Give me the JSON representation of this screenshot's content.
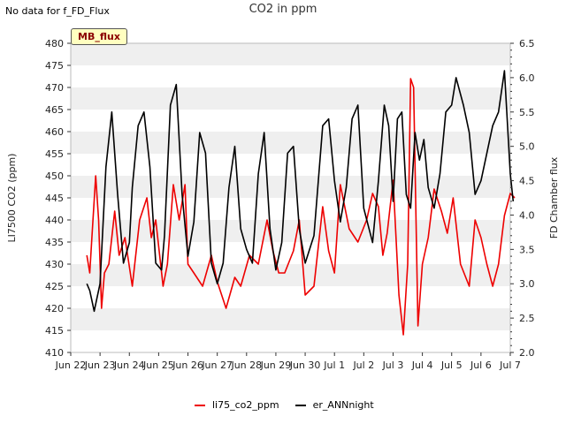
{
  "corner_note": "No data for f_FD_Flux",
  "badge": "MB_flux",
  "colors": {
    "red": "#ee0000",
    "black": "#000000",
    "band": "#efefef"
  },
  "chart_data": {
    "type": "line",
    "title": "CO2 in ppm",
    "ylabel": "LI7500 CO2 (ppm)",
    "y2label": "FD Chamber flux",
    "xlim": [
      0,
      15
    ],
    "ylim": [
      410,
      480
    ],
    "y2lim": [
      2.0,
      6.5
    ],
    "yticks": [
      410,
      415,
      420,
      425,
      430,
      435,
      440,
      445,
      450,
      455,
      460,
      465,
      470,
      475,
      480
    ],
    "y2ticks": [
      2.0,
      2.5,
      3.0,
      3.5,
      4.0,
      4.5,
      5.0,
      5.5,
      6.0,
      6.5
    ],
    "xticks": [
      {
        "x": 0,
        "label": "Jun 22"
      },
      {
        "x": 1,
        "label": "Jun 23"
      },
      {
        "x": 2,
        "label": "Jun 24"
      },
      {
        "x": 3,
        "label": "Jun 25"
      },
      {
        "x": 4,
        "label": "Jun 26"
      },
      {
        "x": 5,
        "label": "Jun 27"
      },
      {
        "x": 6,
        "label": "Jun 28"
      },
      {
        "x": 7,
        "label": "Jun 29"
      },
      {
        "x": 8,
        "label": "Jun 30"
      },
      {
        "x": 9,
        "label": "Jul 1"
      },
      {
        "x": 10,
        "label": "Jul 2"
      },
      {
        "x": 11,
        "label": "Jul 3"
      },
      {
        "x": 12,
        "label": "Jul 4"
      },
      {
        "x": 13,
        "label": "Jul 5"
      },
      {
        "x": 14,
        "label": "Jul 6"
      },
      {
        "x": 15,
        "label": "Jul 7"
      }
    ],
    "series": [
      {
        "name": "li75_co2_ppm",
        "color": "#ee0000",
        "axis": "left",
        "x": [
          0.55,
          0.65,
          0.72,
          0.85,
          0.95,
          1.05,
          1.15,
          1.3,
          1.5,
          1.65,
          1.85,
          2.1,
          2.35,
          2.6,
          2.75,
          2.9,
          3.15,
          3.3,
          3.5,
          3.7,
          3.9,
          4.0,
          4.2,
          4.5,
          4.8,
          5.0,
          5.3,
          5.6,
          5.8,
          6.1,
          6.4,
          6.7,
          6.9,
          7.1,
          7.3,
          7.6,
          7.8,
          8.0,
          8.3,
          8.6,
          8.8,
          9.0,
          9.2,
          9.5,
          9.8,
          10.1,
          10.3,
          10.5,
          10.65,
          10.8,
          11.0,
          11.2,
          11.35,
          11.5,
          11.6,
          11.7,
          11.85,
          12.0,
          12.2,
          12.4,
          12.65,
          12.85,
          13.05,
          13.3,
          13.6,
          13.8,
          14.0,
          14.2,
          14.4,
          14.6,
          14.8,
          15.0,
          15.15
        ],
        "y": [
          432,
          428,
          436,
          450,
          440,
          420,
          428,
          430,
          442,
          432,
          436,
          425,
          440,
          445,
          436,
          440,
          425,
          430,
          448,
          440,
          448,
          430,
          428,
          425,
          432,
          426,
          420,
          427,
          425,
          432,
          430,
          440,
          433,
          428,
          428,
          433,
          440,
          423,
          425,
          443,
          433,
          428,
          448,
          438,
          435,
          440,
          446,
          443,
          432,
          437,
          449,
          423,
          414,
          430,
          472,
          470,
          416,
          430,
          436,
          447,
          442,
          437,
          445,
          430,
          425,
          440,
          436,
          430,
          425,
          430,
          441,
          446,
          445
        ]
      },
      {
        "name": "er_ANNnight",
        "color": "#000000",
        "axis": "right",
        "x": [
          0.55,
          0.65,
          0.8,
          1.0,
          1.2,
          1.4,
          1.6,
          1.8,
          2.0,
          2.1,
          2.3,
          2.5,
          2.7,
          2.9,
          3.1,
          3.2,
          3.4,
          3.6,
          3.8,
          4.0,
          4.2,
          4.4,
          4.6,
          4.8,
          5.0,
          5.2,
          5.4,
          5.6,
          5.8,
          6.0,
          6.2,
          6.4,
          6.6,
          6.8,
          7.0,
          7.2,
          7.4,
          7.6,
          7.8,
          8.0,
          8.3,
          8.6,
          8.8,
          9.0,
          9.2,
          9.4,
          9.6,
          9.8,
          10.0,
          10.3,
          10.5,
          10.7,
          10.85,
          11.0,
          11.15,
          11.3,
          11.45,
          11.6,
          11.75,
          11.9,
          12.05,
          12.2,
          12.4,
          12.6,
          12.8,
          13.0,
          13.15,
          13.4,
          13.6,
          13.8,
          14.0,
          14.2,
          14.4,
          14.6,
          14.8,
          15.0,
          15.1
        ],
        "y": [
          3.0,
          2.9,
          2.6,
          3.0,
          4.7,
          5.5,
          4.3,
          3.3,
          3.6,
          4.4,
          5.3,
          5.5,
          4.7,
          3.3,
          3.2,
          3.7,
          5.6,
          5.9,
          4.3,
          3.4,
          3.9,
          5.2,
          4.9,
          3.3,
          3.0,
          3.3,
          4.4,
          5.0,
          3.8,
          3.5,
          3.3,
          4.6,
          5.2,
          3.8,
          3.2,
          3.6,
          4.9,
          5.0,
          3.8,
          3.3,
          3.7,
          5.3,
          5.4,
          4.5,
          3.9,
          4.4,
          5.4,
          5.6,
          4.1,
          3.6,
          4.5,
          5.6,
          5.3,
          4.2,
          5.4,
          5.5,
          4.3,
          4.1,
          5.2,
          4.8,
          5.1,
          4.4,
          4.1,
          4.6,
          5.5,
          5.6,
          6.0,
          5.6,
          5.2,
          4.3,
          4.5,
          4.9,
          5.3,
          5.5,
          6.1,
          4.6,
          4.2
        ]
      }
    ]
  }
}
